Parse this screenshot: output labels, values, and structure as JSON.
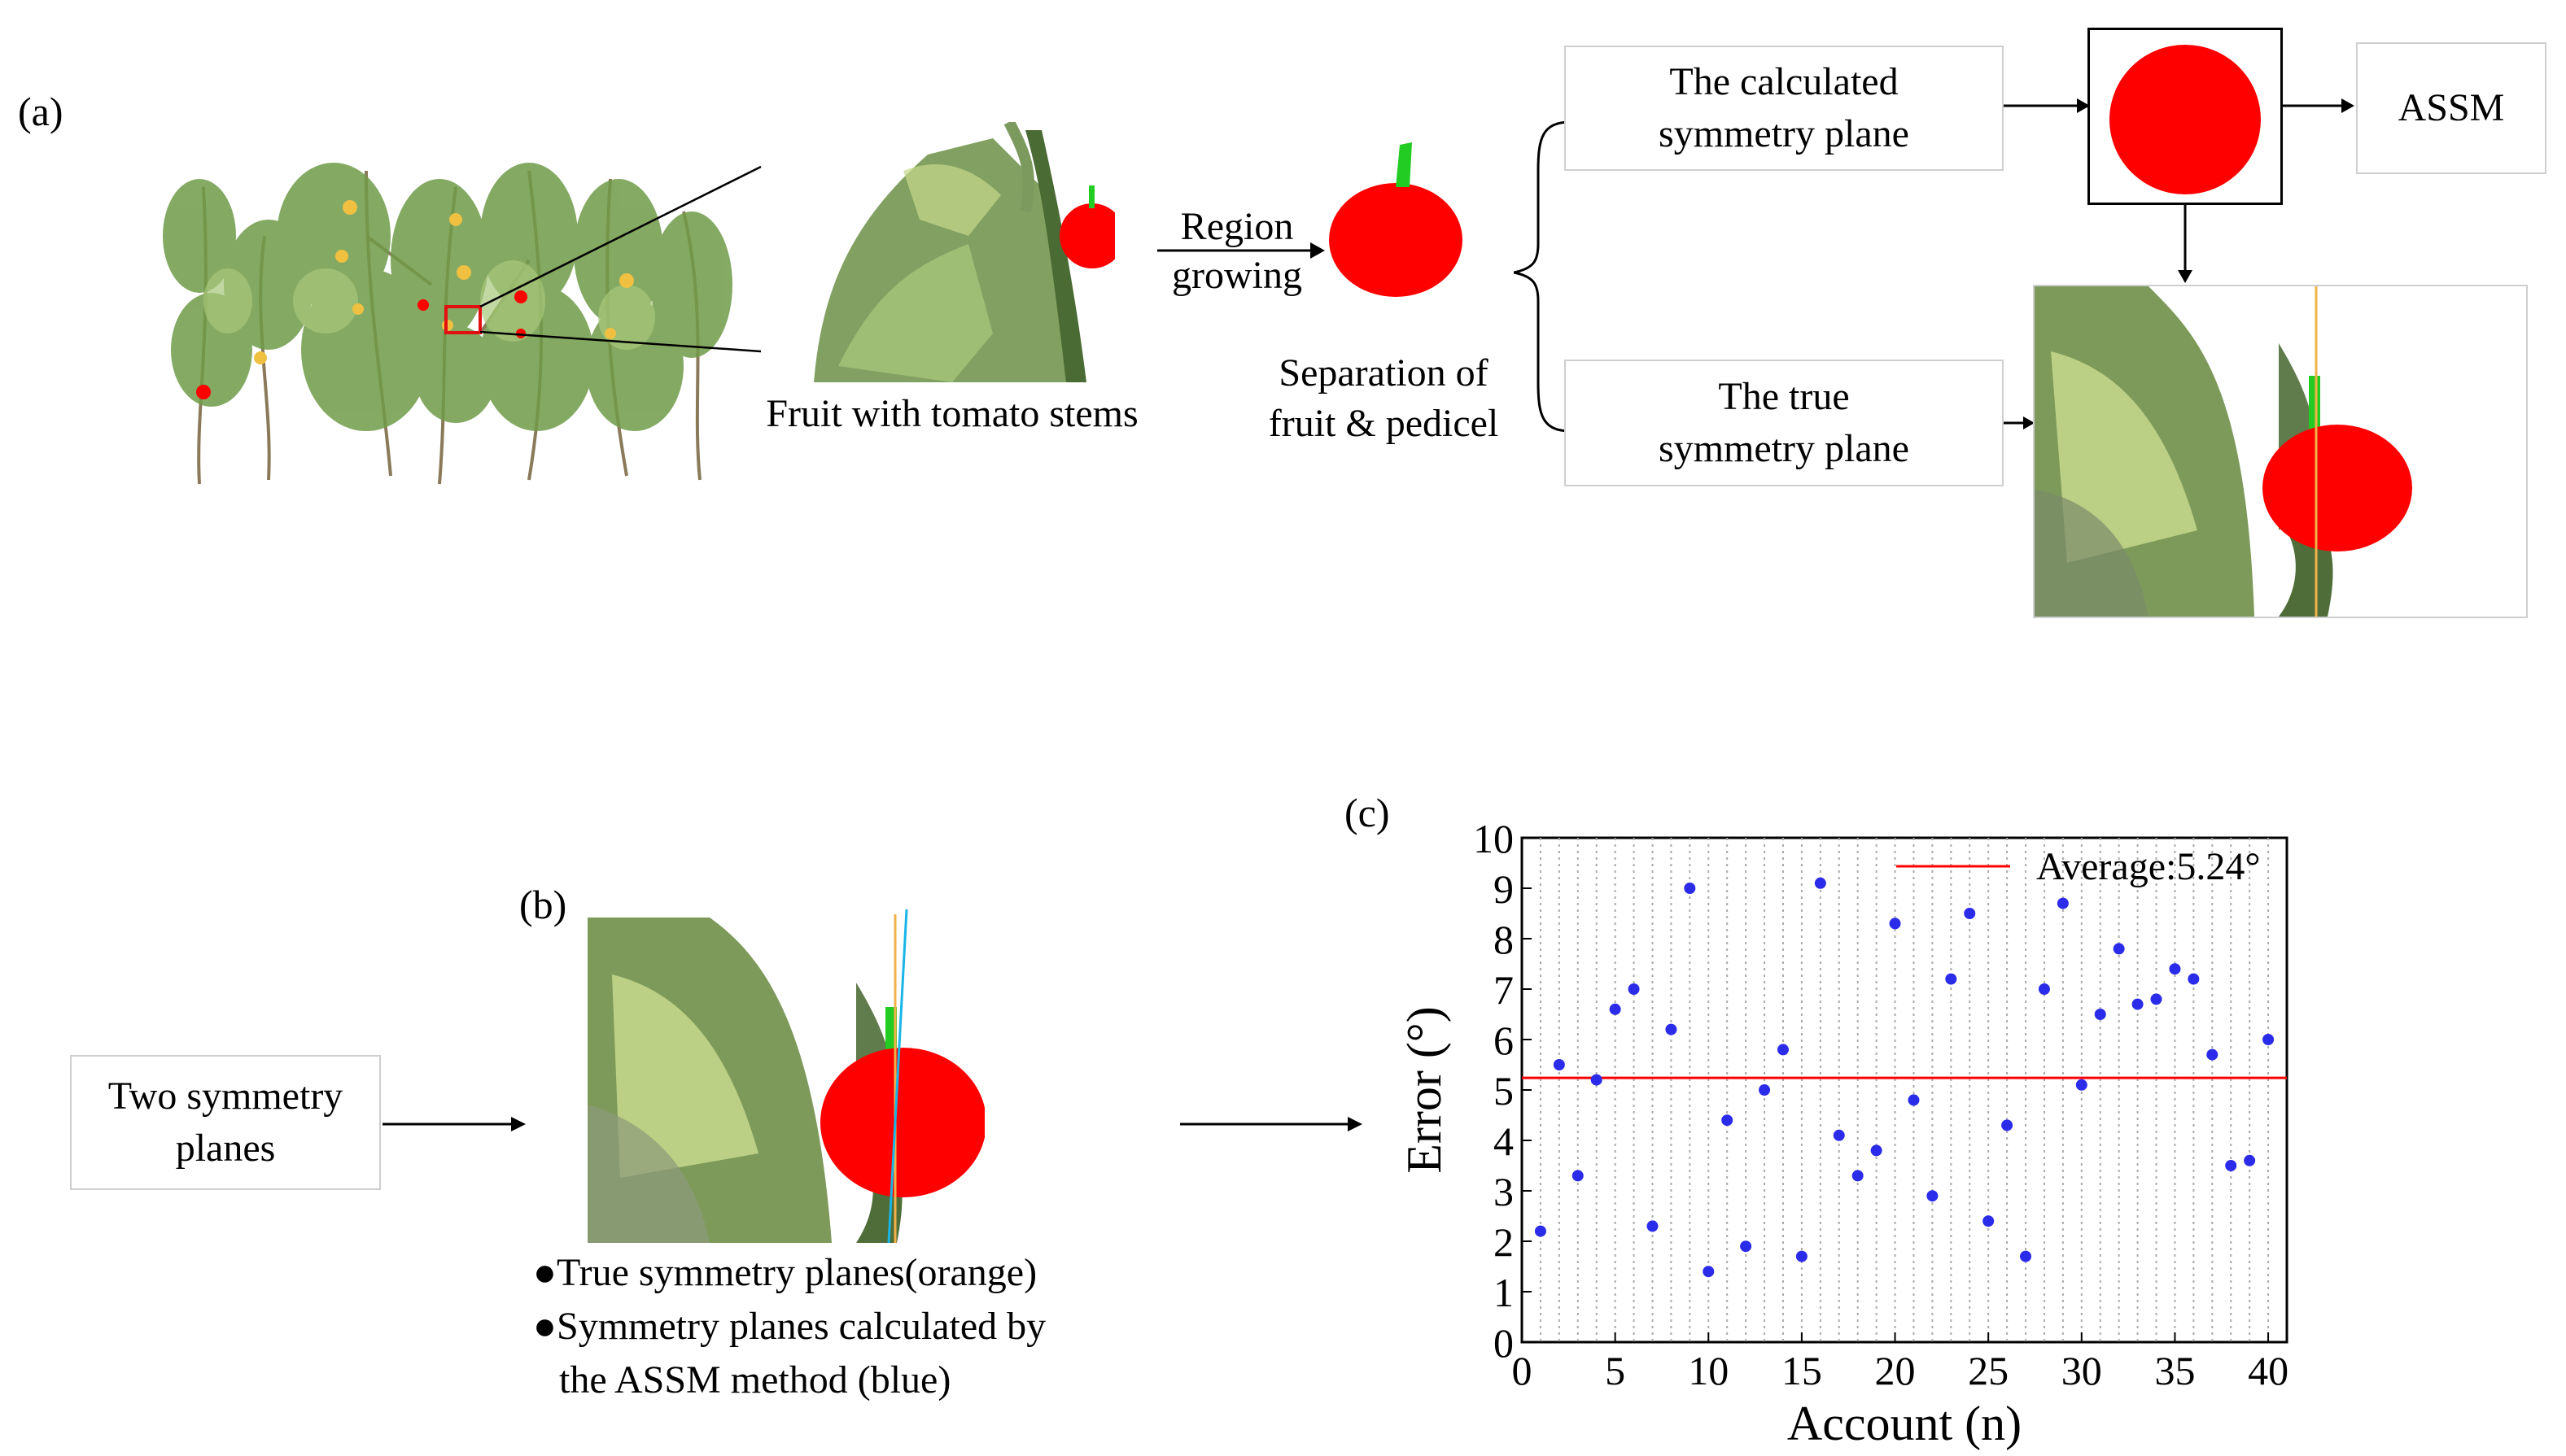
{
  "panel_a": {
    "label": "(a)",
    "caption_fruit_stems": "Fruit with tomato stems",
    "region_growing_l1": "Region",
    "region_growing_l2": "growing",
    "separation_l1": "Separation of",
    "separation_l2": "fruit & pedicel",
    "calc_plane_l1": "The calculated",
    "calc_plane_l2": "symmetry plane",
    "true_plane_l1": "The true",
    "true_plane_l2": "symmetry plane",
    "assm": "ASSM"
  },
  "panel_b": {
    "label": "(b)",
    "input_l1": "Two symmetry",
    "input_l2": "planes",
    "bullet1": "True symmetry planes(orange)",
    "bullet2_l1": "Symmetry planes calculated by",
    "bullet2_l2": "the ASSM method (blue)"
  },
  "panel_c": {
    "label": "(c)"
  },
  "colors": {
    "fruit": "#ff0000",
    "stem": "#22cc22",
    "leaf": "#5d8f3a",
    "true_plane": "#f2b24a",
    "assm_plane": "#18b5e6",
    "points": "#2b2bea",
    "average_line": "#ff0000"
  },
  "chart_data": {
    "type": "scatter",
    "xlabel": "Account (n)",
    "ylabel": "Error (°)",
    "xlim": [
      0,
      41
    ],
    "ylim": [
      0,
      10
    ],
    "xticks": [
      0,
      5,
      10,
      15,
      20,
      25,
      30,
      35,
      40
    ],
    "yticks": [
      0,
      1,
      2,
      3,
      4,
      5,
      6,
      7,
      8,
      9,
      10
    ],
    "grid": "vertical dotted stems per point",
    "legend_position": "top-right",
    "average": {
      "label": "Average:5.24°",
      "value": 5.24
    },
    "x": [
      1,
      2,
      3,
      4,
      5,
      6,
      7,
      8,
      9,
      10,
      11,
      12,
      13,
      14,
      15,
      16,
      17,
      18,
      19,
      20,
      21,
      22,
      23,
      24,
      25,
      26,
      27,
      28,
      29,
      30,
      31,
      32,
      33,
      34,
      35,
      36,
      37,
      38,
      39,
      40
    ],
    "y": [
      2.2,
      5.5,
      3.3,
      5.2,
      6.6,
      7.0,
      2.3,
      6.2,
      9.0,
      1.4,
      4.4,
      1.9,
      5.0,
      5.8,
      1.7,
      9.1,
      4.1,
      3.3,
      3.8,
      8.3,
      4.8,
      2.9,
      7.2,
      8.5,
      2.4,
      4.3,
      1.7,
      7.0,
      8.7,
      5.1,
      6.5,
      7.8,
      6.7,
      6.8,
      7.4,
      7.2,
      5.7,
      3.5,
      3.6,
      6.0
    ]
  }
}
